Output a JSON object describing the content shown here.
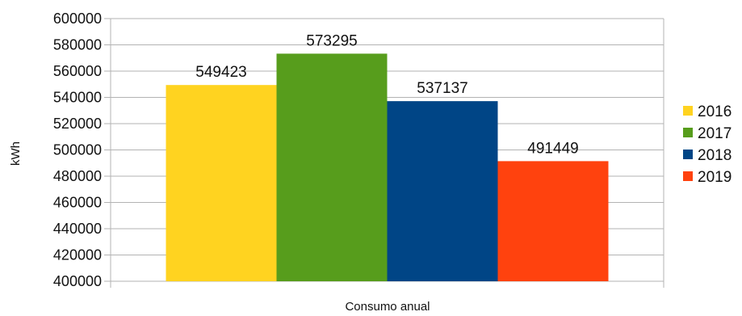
{
  "chart_data": {
    "type": "bar",
    "categories": [
      "Consumo anual"
    ],
    "series": [
      {
        "name": "2016",
        "values": [
          549423
        ],
        "color": "#FFD320"
      },
      {
        "name": "2017",
        "values": [
          573295
        ],
        "color": "#579D1C"
      },
      {
        "name": "2018",
        "values": [
          537137
        ],
        "color": "#004586"
      },
      {
        "name": "2019",
        "values": [
          491449
        ],
        "color": "#FF420E"
      }
    ],
    "title": "",
    "xlabel": "Consumo anual",
    "ylabel": "kWh",
    "ylim": [
      400000,
      600000
    ],
    "yticks": [
      400000,
      420000,
      440000,
      460000,
      480000,
      500000,
      520000,
      540000,
      560000,
      580000,
      600000
    ],
    "grid": true,
    "legend": "right"
  }
}
